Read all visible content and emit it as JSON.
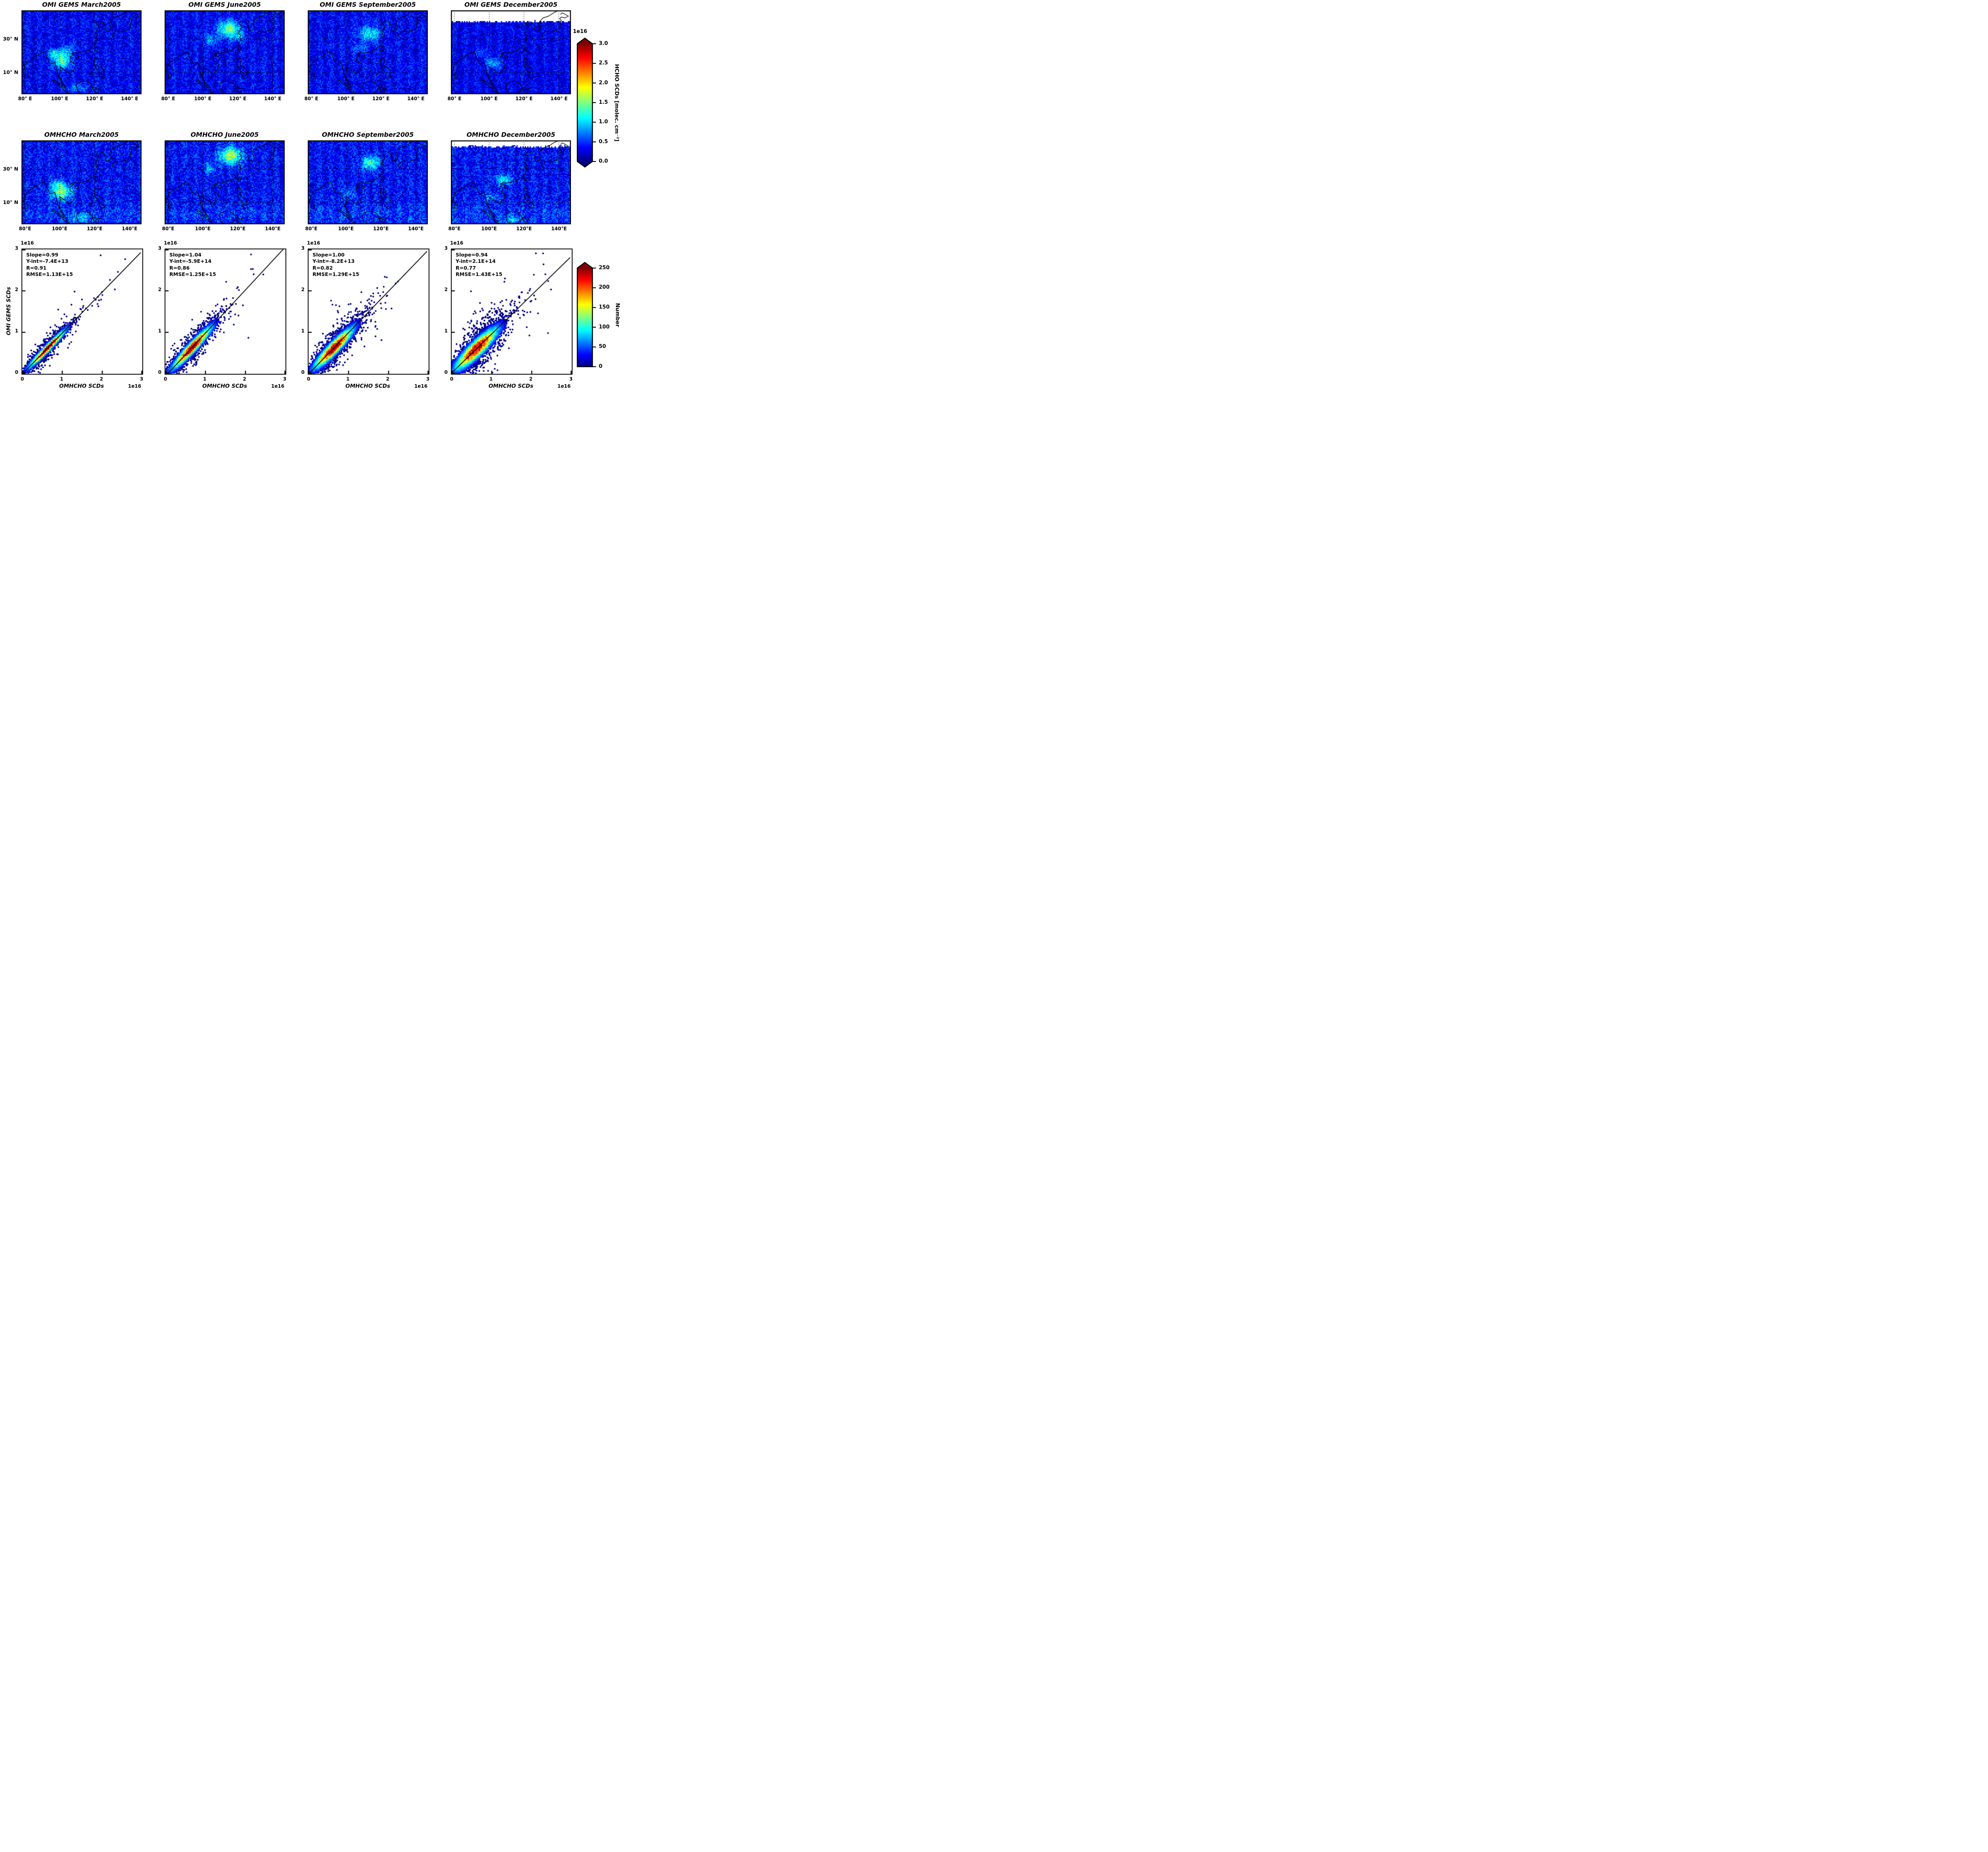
{
  "axes": {
    "map_x_ticks_row1": [
      "80° E",
      "100° E",
      "120° E",
      "140° E"
    ],
    "map_x_ticks_row2": [
      "80°E",
      "100°E",
      "120°E",
      "140°E"
    ],
    "map_y_ticks": [
      "30° N",
      "10° N"
    ],
    "scatter_x_ticks": [
      "0",
      "1",
      "2",
      "3"
    ],
    "scatter_y_ticks": [
      "3",
      "2",
      "1",
      "0"
    ],
    "offset_text": "1e16",
    "scatter_xlabel": "OMHCHO SCDs",
    "scatter_ylabel": "OMI GEMS SCDs"
  },
  "geo": {
    "lon_range": [
      78,
      147
    ],
    "lat_range": [
      -3,
      47
    ],
    "gridline_lons": [
      80,
      100,
      120,
      140
    ],
    "gridline_lats": [
      10,
      30
    ],
    "coastlines": [
      [
        [
          78,
          9
        ],
        [
          79,
          11
        ],
        [
          80,
          14
        ],
        [
          81,
          16
        ],
        [
          84,
          18
        ],
        [
          87,
          20
        ],
        [
          89,
          21.5
        ],
        [
          90,
          22
        ],
        [
          91,
          22.5
        ],
        [
          92,
          21
        ],
        [
          92,
          20
        ],
        [
          94,
          16
        ],
        [
          95,
          15
        ],
        [
          97,
          16
        ],
        [
          98,
          13
        ],
        [
          98.5,
          10
        ],
        [
          99,
          8
        ],
        [
          100,
          7
        ],
        [
          101,
          5
        ],
        [
          103,
          1.5
        ],
        [
          101.5,
          3
        ],
        [
          100,
          5.5
        ],
        [
          99.5,
          8
        ],
        [
          100,
          9.5
        ],
        [
          100.5,
          12
        ],
        [
          100,
          13.5
        ],
        [
          102,
          12
        ],
        [
          104,
          10.5
        ],
        [
          106,
          9
        ],
        [
          106.5,
          10
        ],
        [
          108,
          11.5
        ],
        [
          109,
          13
        ],
        [
          109,
          15
        ],
        [
          106,
          17
        ],
        [
          106,
          19
        ],
        [
          108,
          21
        ],
        [
          106.5,
          21
        ],
        [
          108,
          21.8
        ],
        [
          110,
          21.5
        ],
        [
          111,
          21.8
        ],
        [
          113.5,
          22.2
        ],
        [
          116,
          23
        ],
        [
          118,
          24.5
        ],
        [
          120,
          26
        ],
        [
          121,
          28
        ],
        [
          121.8,
          30
        ],
        [
          121,
          31
        ],
        [
          122,
          32
        ],
        [
          120.5,
          33
        ],
        [
          121,
          35
        ],
        [
          122.5,
          37
        ],
        [
          121,
          39
        ],
        [
          122,
          40.5
        ],
        [
          124.5,
          40
        ],
        [
          125.5,
          38.7
        ],
        [
          126.5,
          37
        ],
        [
          126,
          36
        ],
        [
          127,
          34.5
        ],
        [
          129,
          35.2
        ],
        [
          129.5,
          37
        ],
        [
          128.5,
          39
        ],
        [
          129.5,
          41
        ],
        [
          131,
          42.5
        ],
        [
          134,
          43.5
        ],
        [
          137,
          45.5
        ],
        [
          140,
          47
        ]
      ],
      [
        [
          80.5,
          9.5
        ],
        [
          82,
          8.5
        ],
        [
          81.5,
          6.5
        ],
        [
          80,
          6.5
        ],
        [
          80.5,
          9.5
        ]
      ],
      [
        [
          95.5,
          5.5
        ],
        [
          98,
          3.5
        ],
        [
          101,
          1
        ],
        [
          104,
          -2
        ],
        [
          106,
          -3
        ],
        [
          104.5,
          -1
        ],
        [
          102,
          1.5
        ],
        [
          99,
          4
        ],
        [
          96.5,
          5.8
        ],
        [
          95.5,
          5.5
        ]
      ],
      [
        [
          109.5,
          1.5
        ],
        [
          110,
          3.5
        ],
        [
          112,
          4.5
        ],
        [
          115,
          4.8
        ],
        [
          117.5,
          3.5
        ],
        [
          119,
          1
        ],
        [
          118,
          -1
        ],
        [
          116,
          -2.5
        ],
        [
          113,
          -2.8
        ],
        [
          110.5,
          -1.5
        ],
        [
          109.5,
          1.5
        ]
      ],
      [
        [
          119,
          0.8
        ],
        [
          120.5,
          1.2
        ],
        [
          121,
          0
        ],
        [
          123,
          0.5
        ],
        [
          122,
          -1
        ],
        [
          121.5,
          -2.8
        ],
        [
          120.5,
          -1.5
        ],
        [
          119.5,
          -1
        ],
        [
          119,
          0.8
        ]
      ],
      [
        [
          120,
          18.3
        ],
        [
          121.8,
          18.2
        ],
        [
          122,
          16.5
        ],
        [
          121.3,
          14.5
        ],
        [
          122.5,
          13.5
        ],
        [
          124,
          13
        ],
        [
          125.5,
          11
        ],
        [
          125,
          9
        ],
        [
          126,
          7
        ],
        [
          124,
          6.5
        ],
        [
          122.5,
          8
        ],
        [
          123.5,
          9.5
        ],
        [
          122,
          10.5
        ],
        [
          120.5,
          13
        ],
        [
          119.8,
          15.5
        ],
        [
          120,
          18.3
        ]
      ],
      [
        [
          117,
          8
        ],
        [
          119,
          10.5
        ]
      ],
      [
        [
          121,
          25.3
        ],
        [
          122,
          24.8
        ],
        [
          121.2,
          22.5
        ],
        [
          120.2,
          23.5
        ],
        [
          121,
          25.3
        ]
      ],
      [
        [
          108.8,
          20
        ],
        [
          110.5,
          20
        ],
        [
          111,
          19
        ],
        [
          109.5,
          18.3
        ],
        [
          108.8,
          19
        ],
        [
          108.8,
          20
        ]
      ],
      [
        [
          130.5,
          31
        ],
        [
          130,
          32.5
        ],
        [
          131.5,
          33.5
        ],
        [
          132,
          34.5
        ],
        [
          134,
          34.5
        ],
        [
          135.5,
          34
        ],
        [
          137,
          34.8
        ],
        [
          139,
          35.3
        ],
        [
          140,
          35.8
        ],
        [
          140.8,
          37
        ],
        [
          140.5,
          39
        ],
        [
          141.5,
          41
        ],
        [
          140.5,
          42
        ],
        [
          141.5,
          43
        ],
        [
          143.5,
          42.5
        ],
        [
          145.5,
          43.5
        ],
        [
          144,
          44.5
        ],
        [
          142,
          45.5
        ],
        [
          141,
          44.5
        ]
      ]
    ]
  },
  "chart_data": [
    {
      "id": "map-omi-gems-march2005",
      "type": "heatmap",
      "title": "OMI GEMS March2005",
      "seed": 11,
      "base": 0.12,
      "noise": 0.09,
      "eq_band": 0,
      "white_above_lat": null,
      "hotspots": [
        {
          "lon": 101,
          "lat": 17,
          "rlon": 5,
          "rlat": 4.5,
          "amp": 0.33
        },
        {
          "lon": 97,
          "lat": 21.5,
          "rlon": 3,
          "rlat": 2.5,
          "amp": 0.22
        },
        {
          "lon": 104,
          "lat": 23,
          "rlon": 4,
          "rlat": 3,
          "amp": 0.15
        },
        {
          "lon": 111,
          "lat": 1,
          "rlon": 8,
          "rlat": 2.5,
          "amp": 0.12
        }
      ]
    },
    {
      "id": "map-omi-gems-june2005",
      "type": "heatmap",
      "title": "OMI GEMS June2005",
      "seed": 22,
      "base": 0.12,
      "noise": 0.09,
      "eq_band": 0,
      "white_above_lat": null,
      "hotspots": [
        {
          "lon": 115,
          "lat": 36,
          "rlon": 6,
          "rlat": 4.5,
          "amp": 0.38
        },
        {
          "lon": 105,
          "lat": 29.5,
          "rlon": 4,
          "rlat": 3,
          "amp": 0.18
        },
        {
          "lon": 120,
          "lat": 31,
          "rlon": 4,
          "rlat": 3,
          "amp": 0.15
        }
      ]
    },
    {
      "id": "map-omi-gems-september2005",
      "type": "heatmap",
      "title": "OMI GEMS September2005",
      "seed": 33,
      "base": 0.12,
      "noise": 0.09,
      "eq_band": 0,
      "white_above_lat": null,
      "hotspots": [
        {
          "lon": 114,
          "lat": 33,
          "rlon": 6,
          "rlat": 4.5,
          "amp": 0.26
        },
        {
          "lon": 108,
          "lat": 24,
          "rlon": 4,
          "rlat": 3,
          "amp": 0.12
        }
      ]
    },
    {
      "id": "map-omi-gems-december2005",
      "type": "heatmap",
      "title": "OMI GEMS December2005",
      "seed": 44,
      "base": 0.11,
      "noise": 0.08,
      "eq_band": 0,
      "white_above_lat": 40,
      "hotspots": [
        {
          "lon": 102,
          "lat": 15.5,
          "rlon": 5,
          "rlat": 3.5,
          "amp": 0.18
        },
        {
          "lon": 96,
          "lat": 22,
          "rlon": 3,
          "rlat": 2,
          "amp": 0.1
        }
      ]
    },
    {
      "id": "map-omhcho-march2005",
      "type": "heatmap",
      "title": "OMHCHO March2005",
      "seed": 55,
      "base": 0.13,
      "noise": 0.1,
      "eq_band": 0.05,
      "white_above_lat": null,
      "hotspots": [
        {
          "lon": 101,
          "lat": 16.5,
          "rlon": 5.5,
          "rlat": 4.5,
          "amp": 0.4
        },
        {
          "lon": 98,
          "lat": 21,
          "rlon": 3,
          "rlat": 2.5,
          "amp": 0.2
        },
        {
          "lon": 112,
          "lat": 0.5,
          "rlon": 7,
          "rlat": 2.5,
          "amp": 0.15
        }
      ]
    },
    {
      "id": "map-omhcho-june2005",
      "type": "heatmap",
      "title": "OMHCHO June2005",
      "seed": 66,
      "base": 0.13,
      "noise": 0.1,
      "eq_band": 0.05,
      "white_above_lat": null,
      "hotspots": [
        {
          "lon": 116,
          "lat": 38,
          "rlon": 6.5,
          "rlat": 5,
          "amp": 0.42
        },
        {
          "lon": 104,
          "lat": 30,
          "rlon": 4,
          "rlat": 3,
          "amp": 0.16
        }
      ]
    },
    {
      "id": "map-omhcho-september2005",
      "type": "heatmap",
      "title": "OMHCHO September2005",
      "seed": 77,
      "base": 0.13,
      "noise": 0.1,
      "eq_band": 0.05,
      "white_above_lat": null,
      "hotspots": [
        {
          "lon": 114,
          "lat": 33.5,
          "rlon": 5,
          "rlat": 4,
          "amp": 0.3
        },
        {
          "lon": 101,
          "lat": 15,
          "rlon": 4,
          "rlat": 3,
          "amp": 0.12
        }
      ]
    },
    {
      "id": "map-omhcho-december2005",
      "type": "heatmap",
      "title": "OMHCHO December2005",
      "seed": 88,
      "base": 0.13,
      "noise": 0.1,
      "eq_band": 0.06,
      "white_above_lat": 43,
      "hotspots": [
        {
          "lon": 108,
          "lat": 23.5,
          "rlon": 4.5,
          "rlat": 3,
          "amp": 0.26
        },
        {
          "lon": 113,
          "lat": -0.5,
          "rlon": 5,
          "rlat": 2,
          "amp": 0.18
        },
        {
          "lon": 101,
          "lat": 13.5,
          "rlon": 4,
          "rlat": 2.5,
          "amp": 0.14
        }
      ]
    },
    {
      "id": "scatter-march2005",
      "type": "scatter",
      "x_range": [
        0,
        3e+16
      ],
      "y_range": [
        0,
        3e+16
      ],
      "stats": {
        "slope": 0.99,
        "y_intercept": -74000000000000.0,
        "r": 0.91,
        "rmse": 1130000000000000.0
      },
      "stats_lines": [
        "Slope=0.99",
        "Y-int=-7.4E+13",
        "R=0.91",
        "RMSE=1.13E+15"
      ],
      "point_color": "#00008b",
      "seed": 101,
      "center": 0.62,
      "sigma_along": 0.3,
      "sigma_perp": 0.052,
      "n_points": 900
    },
    {
      "id": "scatter-june2005",
      "type": "scatter",
      "x_range": [
        0,
        3e+16
      ],
      "y_range": [
        0,
        3e+16
      ],
      "stats": {
        "slope": 1.04,
        "y_intercept": -590000000000000.0,
        "r": 0.86,
        "rmse": 1250000000000000.0
      },
      "stats_lines": [
        "Slope=1.04",
        "Y-int=-5.9E+14",
        "R=0.86",
        "RMSE=1.25E+15"
      ],
      "point_color": "#00008b",
      "seed": 202,
      "center": 0.66,
      "sigma_along": 0.32,
      "sigma_perp": 0.075,
      "n_points": 1000
    },
    {
      "id": "scatter-september2005",
      "type": "scatter",
      "x_range": [
        0,
        3e+16
      ],
      "y_range": [
        0,
        3e+16
      ],
      "stats": {
        "slope": 1.0,
        "y_intercept": -82000000000000.0,
        "r": 0.82,
        "rmse": 1290000000000000.0
      },
      "stats_lines": [
        "Slope=1.00",
        "Y-int=-8.2E+13",
        "R=0.82",
        "RMSE=1.29E+15"
      ],
      "point_color": "#00008b",
      "seed": 303,
      "center": 0.63,
      "sigma_along": 0.32,
      "sigma_perp": 0.09,
      "n_points": 1200
    },
    {
      "id": "scatter-december2005",
      "type": "scatter",
      "x_range": [
        0,
        3e+16
      ],
      "y_range": [
        0,
        3e+16
      ],
      "stats": {
        "slope": 0.94,
        "y_intercept": 210000000000000.0,
        "r": 0.77,
        "rmse": 1430000000000000.0
      },
      "stats_lines": [
        "Slope=0.94",
        "Y-int=2.1E+14",
        "R=0.77",
        "RMSE=1.43E+15"
      ],
      "point_color": "#00008b",
      "seed": 404,
      "center": 0.62,
      "sigma_along": 0.34,
      "sigma_perp": 0.115,
      "n_points": 1600
    },
    {
      "id": "colorbar-hcho-scd",
      "type": "colorbar",
      "cmap": "jet",
      "extend": "both",
      "offset_text": "1e16",
      "ticks": [
        "3.0",
        "2.5",
        "2.0",
        "1.5",
        "1.0",
        "0.5",
        "0.0"
      ],
      "label": "HCHO SCDs [molec. cm⁻²]",
      "vmin": 0,
      "vmax": 3e+16
    },
    {
      "id": "colorbar-number",
      "type": "colorbar",
      "cmap": "jet",
      "extend": "max",
      "ticks": [
        "250",
        "200",
        "150",
        "100",
        "50",
        "0"
      ],
      "label": "Number",
      "vmin": 0,
      "vmax": 250
    }
  ]
}
